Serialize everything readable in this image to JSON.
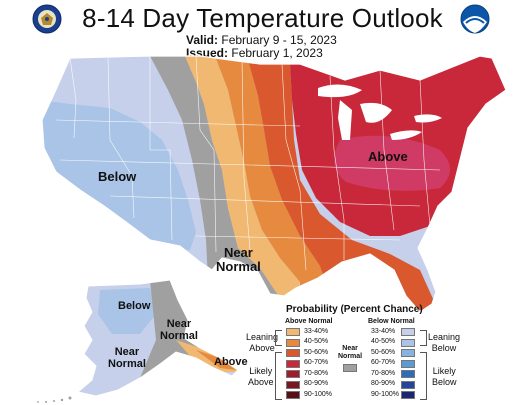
{
  "header": {
    "title": "8-14 Day Temperature Outlook",
    "valid_label": "Valid:",
    "valid_value": "February 9 - 15, 2023",
    "issued_label": "Issued:",
    "issued_value": "February 1, 2023"
  },
  "logos": {
    "left": "doc-seal-icon",
    "right": "noaa-logo-icon"
  },
  "map_labels": {
    "west_below": "Below",
    "east_above": "Above",
    "central_near_1": "Near",
    "central_near_2": "Normal",
    "ak_below": "Below",
    "ak_near_a_1": "Near",
    "ak_near_a_2": "Normal",
    "ak_near_b_1": "Near",
    "ak_near_b_2": "Normal",
    "ak_above": "Above"
  },
  "legend": {
    "title": "Probability (Percent Chance)",
    "above_header": "Above Normal",
    "below_header": "Below Normal",
    "near_header_1": "Near",
    "near_header_2": "Normal",
    "leaning_above_1": "Leaning",
    "leaning_above_2": "Above",
    "likely_above_1": "Likely",
    "likely_above_2": "Above",
    "leaning_below_1": "Leaning",
    "leaning_below_2": "Below",
    "likely_below_1": "Likely",
    "likely_below_2": "Below",
    "ranges": [
      "33-40%",
      "40-50%",
      "50-60%",
      "60-70%",
      "70-80%",
      "80-90%",
      "90-100%"
    ],
    "above_colors": [
      "#f0b870",
      "#e68a40",
      "#d9582e",
      "#c9283a",
      "#a01c2c",
      "#7a1822",
      "#561016"
    ],
    "below_colors": [
      "#c6d0ea",
      "#a9c4e6",
      "#86b3df",
      "#5a9bd2",
      "#2d6db8",
      "#25459b",
      "#1d2470"
    ],
    "near_color": "#a0a0a0"
  }
}
